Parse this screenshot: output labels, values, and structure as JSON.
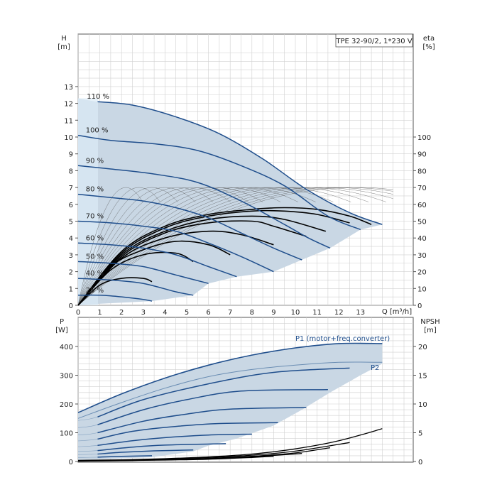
{
  "chart_data": [
    {
      "type": "line",
      "panel": "head-efficiency",
      "title": "TPE 32-90/2, 1*230 V",
      "xlabel": "Q [m³/h]",
      "ylabel_left": [
        "H",
        "[m]"
      ],
      "ylabel_right": [
        "eta",
        "[%]"
      ],
      "xlim": [
        0,
        15.5
      ],
      "ylim": [
        0,
        16
      ],
      "xticks": [
        "0",
        "1",
        "2",
        "3",
        "4",
        "5",
        "6",
        "7",
        "8",
        "9",
        "10",
        "11",
        "12",
        "13"
      ],
      "yticks_left": [
        "0",
        "1",
        "2",
        "3",
        "4",
        "5",
        "6",
        "7",
        "8",
        "9",
        "10",
        "11",
        "12",
        "13"
      ],
      "yticks_right": [
        "0",
        "10",
        "20",
        "30",
        "40",
        "50",
        "60",
        "70",
        "80",
        "90",
        "100"
      ],
      "eta_scale_per_m": 10,
      "grid": true,
      "colors": {
        "curve": "#1f4e8c",
        "envelope": "#c9d7e4",
        "envelope_edge": "#dcebf7",
        "efficiency": "#000000",
        "grid": "#d0d0d0"
      },
      "speed_curves": [
        {
          "label": "110 %",
          "x": [
            0.9,
            2.5,
            4.5,
            6.5,
            8.5,
            10.5,
            12.5,
            14.0
          ],
          "y": [
            12.1,
            11.9,
            11.2,
            10.2,
            8.7,
            6.9,
            5.5,
            4.8
          ]
        },
        {
          "label": "100 %",
          "x": [
            0,
            1.5,
            3.5,
            5.5,
            7.5,
            9.5,
            11.5,
            13.0
          ],
          "y": [
            10.1,
            9.8,
            9.6,
            9.2,
            8.3,
            7.1,
            5.3,
            4.5
          ]
        },
        {
          "label": "90 %",
          "x": [
            0,
            1.5,
            3.5,
            5.5,
            7.5,
            9.5,
            10.6,
            11.6
          ],
          "y": [
            8.3,
            8.1,
            7.8,
            7.3,
            6.2,
            4.8,
            4.0,
            3.4
          ]
        },
        {
          "label": "80 %",
          "x": [
            0,
            1.5,
            3.0,
            4.5,
            6.0,
            7.5,
            9.0,
            10.3
          ],
          "y": [
            6.6,
            6.4,
            6.2,
            5.8,
            5.2,
            4.3,
            3.4,
            2.7
          ]
        },
        {
          "label": "70 %",
          "x": [
            0,
            1.5,
            3.0,
            4.5,
            6.0,
            7.5,
            9.0
          ],
          "y": [
            5.0,
            4.9,
            4.7,
            4.4,
            3.7,
            2.9,
            2.0
          ]
        },
        {
          "label": "60 %",
          "x": [
            0,
            1.5,
            3.0,
            4.5,
            6.0,
            7.3
          ],
          "y": [
            3.7,
            3.6,
            3.4,
            3.0,
            2.3,
            1.7
          ]
        },
        {
          "label": "50 %",
          "x": [
            0,
            1.5,
            3.0,
            4.5,
            6.0
          ],
          "y": [
            2.6,
            2.5,
            2.3,
            1.8,
            1.3
          ]
        },
        {
          "label": "40 %",
          "x": [
            0,
            1.5,
            3.0,
            4.5,
            5.3
          ],
          "y": [
            1.6,
            1.5,
            1.3,
            0.8,
            0.6
          ]
        },
        {
          "label": "25 %",
          "x": [
            0,
            1.0,
            2.0,
            3.0,
            3.4
          ],
          "y": [
            0.6,
            0.6,
            0.5,
            0.35,
            0.25
          ]
        }
      ],
      "head_envelope": {
        "upper": {
          "x": [
            0,
            0.9,
            2.5,
            4.5,
            6.5,
            8.5,
            10.5,
            12.5,
            14.0
          ],
          "y": [
            12.3,
            12.1,
            11.9,
            11.2,
            10.2,
            8.7,
            6.9,
            5.5,
            4.8
          ]
        },
        "lower": {
          "x": [
            13.0,
            11.6,
            10.3,
            9.0,
            7.3,
            6.0,
            5.3,
            3.4,
            0.4,
            0
          ],
          "y": [
            4.5,
            3.4,
            2.7,
            2.0,
            1.7,
            1.3,
            0.6,
            0.25,
            0.05,
            0
          ]
        }
      },
      "efficiency_curves": [
        {
          "x": [
            0,
            2.0,
            4.0,
            6.0,
            8.0,
            9.5,
            11.0,
            12.5,
            13.5
          ],
          "y": [
            0,
            3.2,
            4.7,
            5.4,
            5.7,
            5.8,
            5.7,
            5.3,
            4.8
          ]
        },
        {
          "x": [
            0,
            2.0,
            4.0,
            6.0,
            8.0,
            9.5,
            11.0,
            12.5
          ],
          "y": [
            0,
            3.1,
            4.6,
            5.3,
            5.6,
            5.6,
            5.4,
            4.9
          ]
        },
        {
          "x": [
            0,
            2.0,
            4.0,
            6.0,
            8.0,
            9.5,
            11.4
          ],
          "y": [
            0,
            3.0,
            4.4,
            5.1,
            5.3,
            5.1,
            4.4
          ]
        },
        {
          "x": [
            0,
            2.0,
            4.0,
            6.0,
            8.0,
            9.0,
            10.5
          ],
          "y": [
            0,
            2.9,
            4.3,
            4.9,
            5.0,
            4.7,
            4.1
          ]
        },
        {
          "x": [
            0,
            2.0,
            4.0,
            6.0,
            7.5,
            9.0
          ],
          "y": [
            0,
            2.8,
            4.0,
            4.4,
            4.2,
            3.6
          ]
        },
        {
          "x": [
            0,
            1.5,
            3.0,
            4.5,
            6.0,
            7.0
          ],
          "y": [
            0,
            2.3,
            3.3,
            3.8,
            3.6,
            3.0
          ]
        },
        {
          "x": [
            0,
            1.5,
            3.0,
            4.5,
            5.3
          ],
          "y": [
            0,
            2.1,
            3.0,
            3.1,
            2.6
          ]
        },
        {
          "x": [
            0,
            1.0,
            2.0,
            3.0,
            3.4
          ],
          "y": [
            0,
            1.2,
            1.6,
            1.6,
            1.4
          ]
        }
      ],
      "efficiency_thin_peaks": [
        2.2,
        2.8,
        3.4,
        4.0,
        4.6,
        5.2,
        5.8,
        6.3,
        6.9,
        7.5,
        8.1,
        8.7,
        9.3,
        9.9,
        10.5,
        11.1,
        11.7,
        12.3,
        12.8
      ],
      "efficiency_thin_peak_eta": 70
    },
    {
      "type": "line",
      "panel": "power-npsh",
      "ylabel_left": [
        "P",
        "[W]"
      ],
      "ylabel_right": [
        "NPSH",
        "[m]"
      ],
      "xlim": [
        0,
        15.5
      ],
      "ylim": [
        0,
        500
      ],
      "yticks_left": [
        "0",
        "100",
        "200",
        "300",
        "400"
      ],
      "yticks_right": [
        "0",
        "5",
        "10",
        "15",
        "20"
      ],
      "npsh_scale_w_per_m": 20,
      "grid": true,
      "p1_label": "P1 (motor+freq.converter)",
      "p2_label": "P2",
      "p1_curve": {
        "x": [
          0,
          2,
          4,
          6,
          8,
          10,
          12,
          14.0
        ],
        "y": [
          170,
          235,
          290,
          335,
          370,
          395,
          410,
          410
        ]
      },
      "p2_curve": {
        "x": [
          0,
          2,
          4,
          6,
          8,
          10,
          12,
          14.0
        ],
        "y": [
          150,
          205,
          255,
          295,
          320,
          335,
          345,
          345
        ]
      },
      "power_curves": [
        {
          "x": [
            0.9,
            3,
            6,
            9,
            12.5
          ],
          "y": [
            155,
            215,
            270,
            310,
            325
          ]
        },
        {
          "x": [
            0.9,
            3,
            5,
            7.5,
            11.5
          ],
          "y": [
            128,
            180,
            215,
            245,
            250
          ]
        },
        {
          "x": [
            0.9,
            3,
            5,
            7,
            10.5
          ],
          "y": [
            100,
            140,
            165,
            182,
            188
          ]
        },
        {
          "x": [
            0.9,
            2.5,
            4.5,
            6.5,
            9.2
          ],
          "y": [
            78,
            105,
            122,
            132,
            135
          ]
        },
        {
          "x": [
            0.9,
            2.5,
            4,
            6,
            8
          ],
          "y": [
            56,
            72,
            83,
            92,
            95
          ]
        },
        {
          "x": [
            0.9,
            2.5,
            4,
            6.8
          ],
          "y": [
            38,
            50,
            57,
            62
          ]
        },
        {
          "x": [
            0.9,
            2,
            3.5,
            5.3
          ],
          "y": [
            26,
            32,
            37,
            40
          ]
        },
        {
          "x": [
            0.9,
            2,
            3.4
          ],
          "y": [
            15,
            18,
            20
          ]
        }
      ],
      "power_envelope": {
        "upper": {
          "x": [
            0,
            2,
            4,
            6,
            8,
            10,
            12,
            14.0
          ],
          "y": [
            170,
            235,
            290,
            335,
            370,
            395,
            410,
            410
          ]
        },
        "lower": {
          "x": [
            14.0,
            13.0,
            11.6,
            10.3,
            9.0,
            7.3,
            6.0,
            5.3,
            3.4,
            0
          ],
          "y": [
            340,
            300,
            240,
            180,
            125,
            80,
            55,
            35,
            15,
            5
          ]
        }
      },
      "npsh_curves": [
        {
          "x": [
            0,
            2,
            4,
            6,
            8,
            10,
            12,
            14.0
          ],
          "y": [
            0.2,
            0.3,
            0.5,
            0.8,
            1.3,
            2.2,
            3.6,
            5.7
          ]
        },
        {
          "x": [
            0,
            2,
            4,
            6,
            8,
            10,
            12.5
          ],
          "y": [
            0.15,
            0.25,
            0.45,
            0.7,
            1.1,
            1.8,
            3.3
          ]
        },
        {
          "x": [
            0,
            2,
            4,
            6,
            8,
            10,
            11.6
          ],
          "y": [
            0.1,
            0.2,
            0.35,
            0.55,
            0.9,
            1.5,
            2.4
          ]
        },
        {
          "x": [
            0,
            2,
            4,
            6,
            8,
            10.3
          ],
          "y": [
            0.1,
            0.15,
            0.3,
            0.45,
            0.8,
            1.4
          ]
        },
        {
          "x": [
            0,
            2,
            4,
            6,
            8,
            9.0
          ],
          "y": [
            0.05,
            0.15,
            0.25,
            0.4,
            0.7,
            0.9
          ]
        }
      ]
    }
  ]
}
